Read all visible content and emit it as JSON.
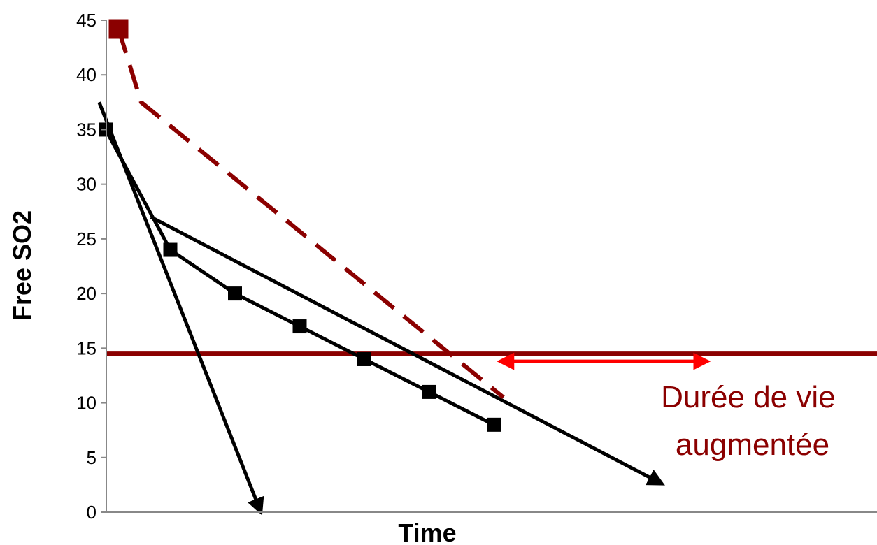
{
  "chart_data": {
    "type": "line",
    "title": "",
    "xlabel": "Time",
    "ylabel": "Free SO2",
    "ylim": [
      0,
      45
    ],
    "xlim": [
      0,
      7.2
    ],
    "yticks": [
      0,
      5,
      10,
      15,
      20,
      25,
      30,
      35,
      40,
      45
    ],
    "grid": false,
    "legend": "none",
    "series": [
      {
        "style": "solid-black-with-square-markers",
        "color": "#000000",
        "x": [
          0,
          1,
          2,
          3,
          4,
          5,
          6
        ],
        "y": [
          35,
          24,
          20,
          17,
          14,
          11,
          8
        ]
      },
      {
        "style": "dashed-dark-red",
        "color": "#8B0000",
        "x": [
          0.2,
          0.55,
          6.15
        ],
        "y": [
          44.2,
          37.5,
          10.5
        ],
        "first_marker": "square"
      }
    ],
    "arrows": [
      {
        "color": "#000000",
        "from": [
          -0.1,
          37.5
        ],
        "to": [
          2.4,
          0
        ]
      },
      {
        "color": "#000000",
        "from": [
          0.7,
          27
        ],
        "to": [
          8.6,
          2.6
        ]
      }
    ],
    "reference_lines": [
      {
        "orientation": "horizontal",
        "y": 14.5,
        "color": "#8B0000"
      }
    ],
    "annotations": [
      {
        "lines": [
          "Durée de vie",
          "augmentée"
        ],
        "color": "#8B0000",
        "x": 10.0,
        "y": 8.0
      }
    ],
    "span_arrow": {
      "color": "#FF0000",
      "y": 13.8,
      "x_from": 6.1,
      "x_to": 9.3
    }
  },
  "colors": {
    "axis": "#888888",
    "text": "#000000"
  }
}
